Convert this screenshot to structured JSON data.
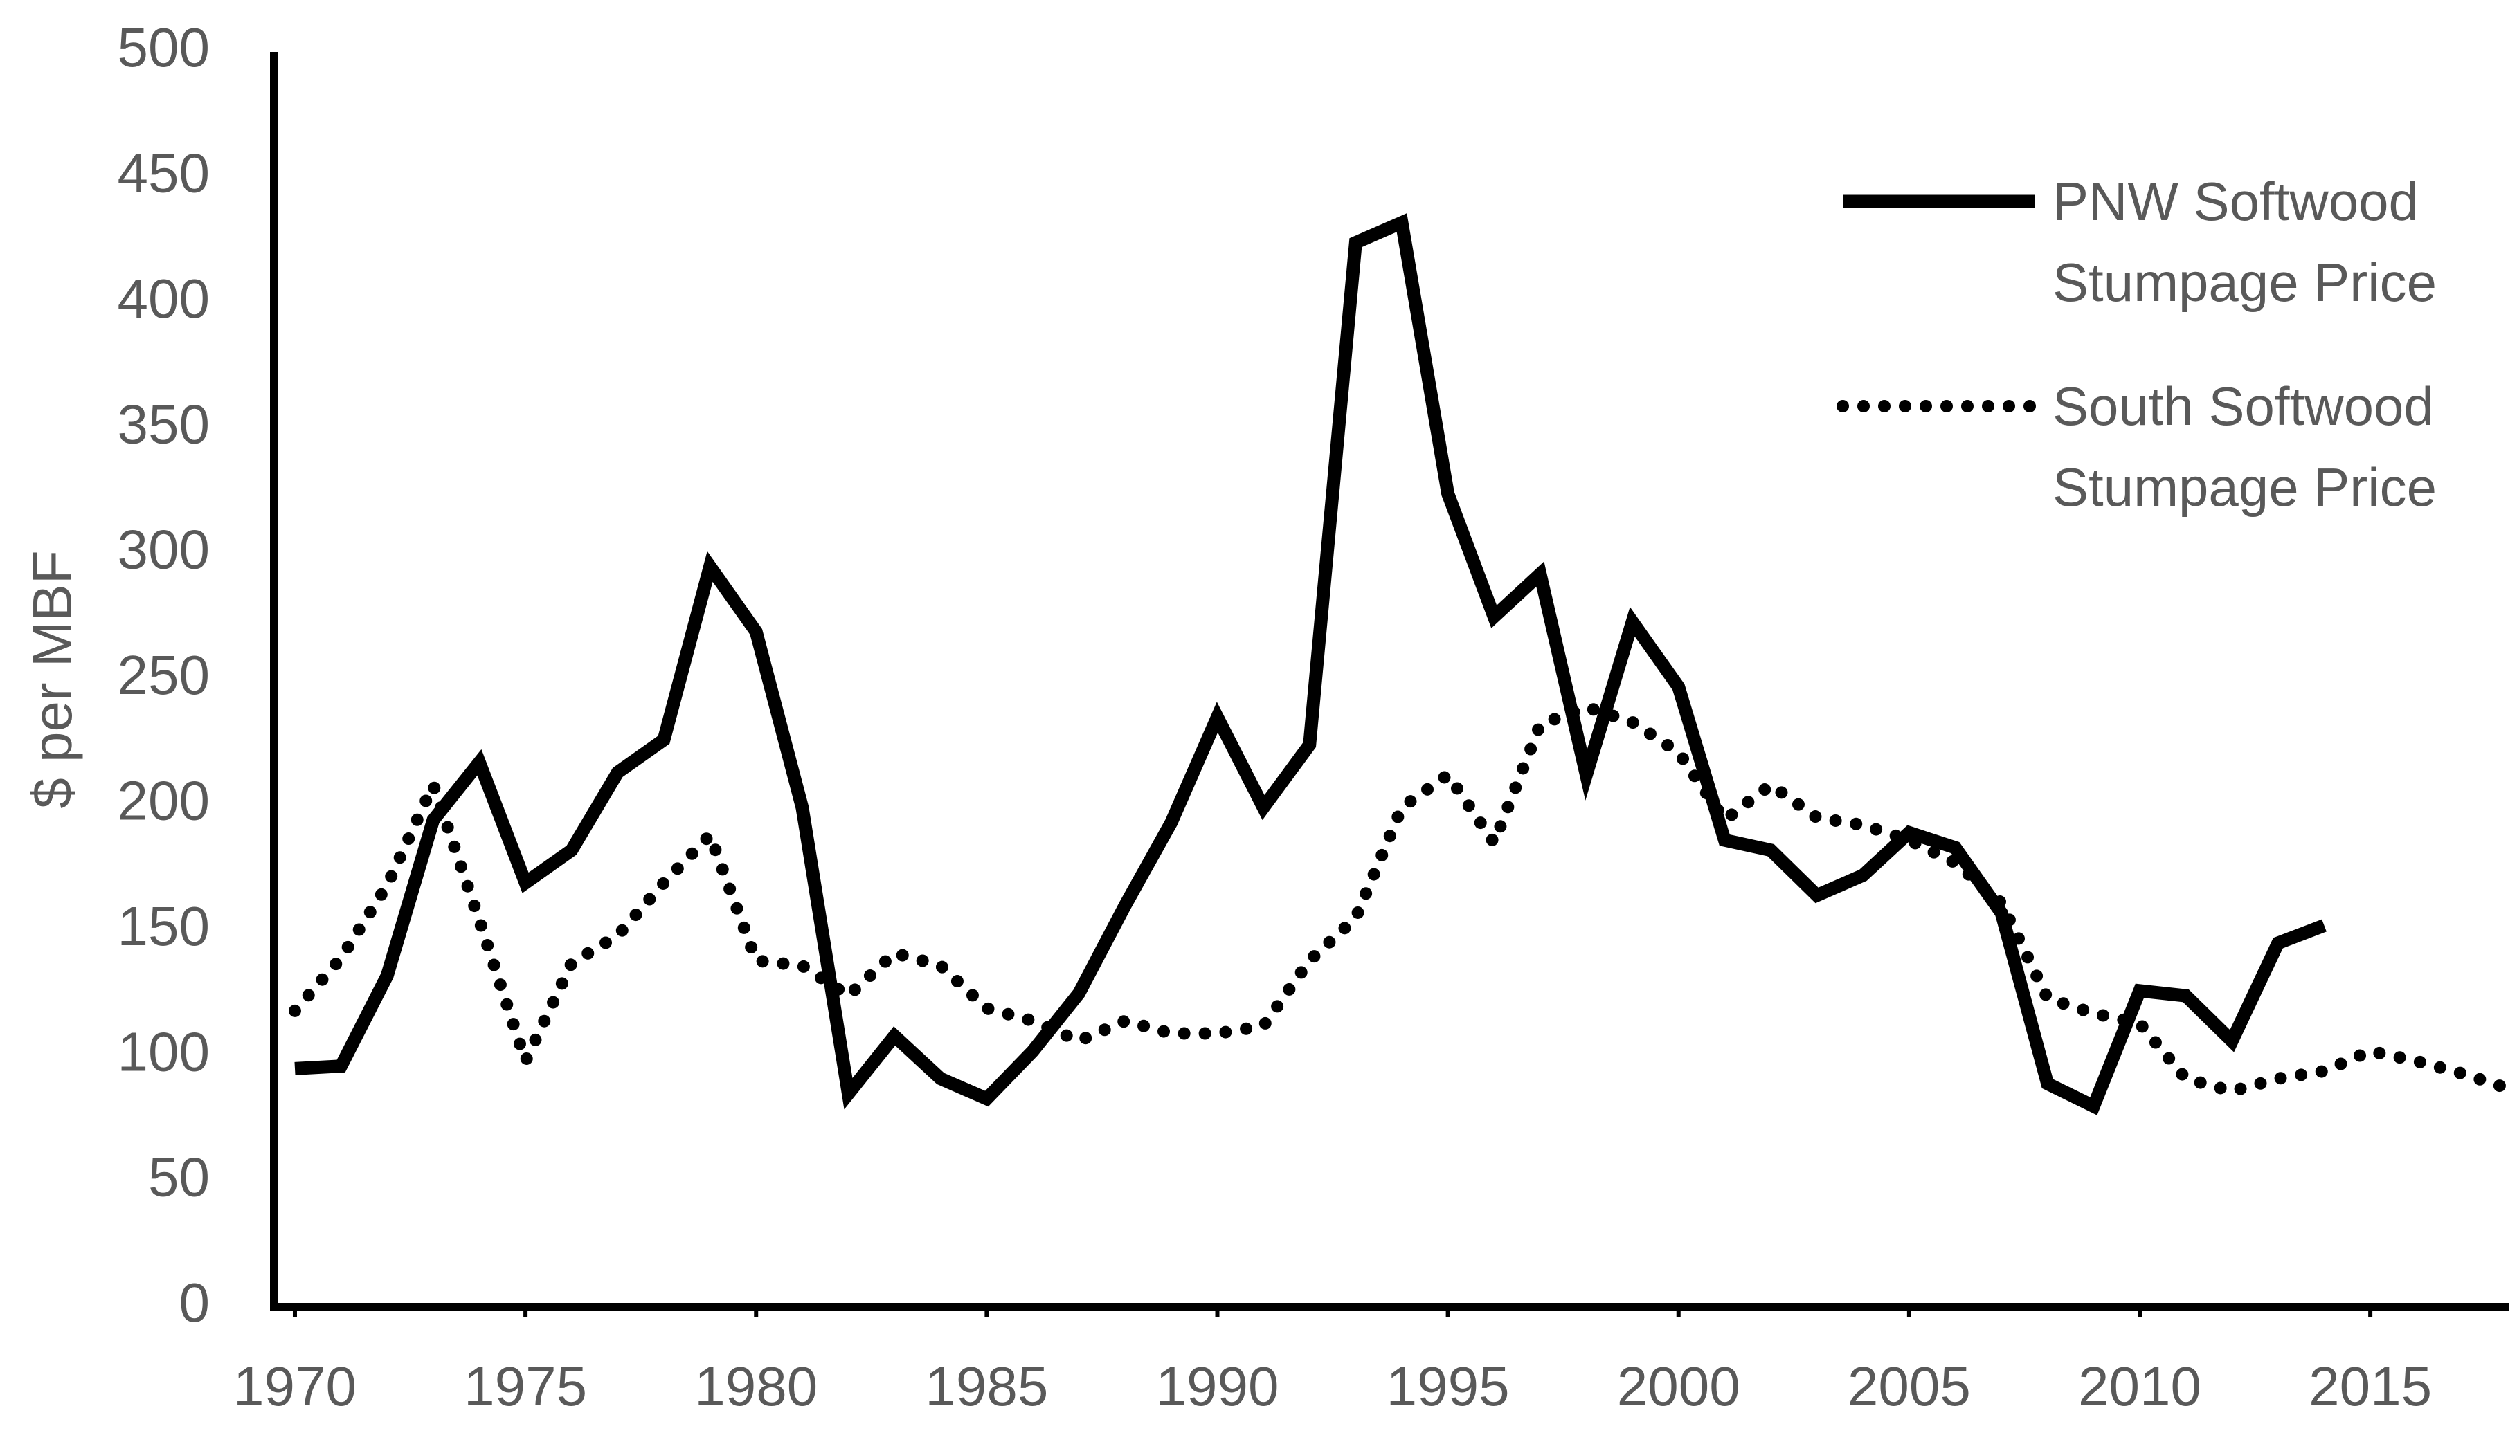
{
  "chart_data": {
    "type": "line",
    "ylabel": "$ per MBF",
    "x": [
      1970,
      1971,
      1972,
      1973,
      1974,
      1975,
      1976,
      1977,
      1978,
      1979,
      1980,
      1981,
      1982,
      1983,
      1984,
      1985,
      1986,
      1987,
      1988,
      1989,
      1990,
      1991,
      1992,
      1993,
      1994,
      1995,
      1996,
      1997,
      1998,
      1999,
      2000,
      2001,
      2002,
      2003,
      2004,
      2005,
      2006,
      2007,
      2008,
      2009,
      2010,
      2011,
      2012,
      2013,
      2014,
      2015,
      2016,
      2017,
      2018
    ],
    "series": [
      {
        "name": "PNW Softwood Stumpage Price",
        "color": "#000000",
        "style": "solid",
        "values": [
          95,
          96,
          132,
          194,
          217,
          169,
          182,
          213,
          226,
          295,
          269,
          199,
          85,
          108,
          91,
          83,
          102,
          125,
          160,
          193,
          235,
          199,
          224,
          424,
          432,
          324,
          275,
          292,
          212,
          273,
          247,
          186,
          182,
          164,
          172,
          189,
          183,
          157,
          89,
          80,
          126,
          124,
          106,
          145,
          152,
          null,
          null,
          null,
          null
        ]
      },
      {
        "name": "South Softwood Stumpage Price",
        "color": "#000000",
        "style": "dotted",
        "values": [
          118,
          139,
          168,
          208,
          154,
          98,
          137,
          148,
          169,
          188,
          138,
          136,
          124,
          141,
          136,
          119,
          114,
          106,
          114,
          109,
          109,
          112,
          138,
          155,
          199,
          212,
          185,
          232,
          239,
          233,
          221,
          194,
          208,
          195,
          192,
          186,
          177,
          161,
          123,
          117,
          113,
          91,
          86,
          91,
          94,
          102,
          98,
          93,
          87
        ]
      }
    ],
    "xlim": [
      1969.55,
      2018
    ],
    "xticks": [
      1970,
      1975,
      1980,
      1985,
      1990,
      1995,
      2000,
      2005,
      2010,
      2015
    ],
    "ylim": [
      0,
      500
    ],
    "yticks": [
      0,
      50,
      100,
      150,
      200,
      250,
      300,
      350,
      400,
      450,
      500
    ],
    "legend": "upper right"
  }
}
